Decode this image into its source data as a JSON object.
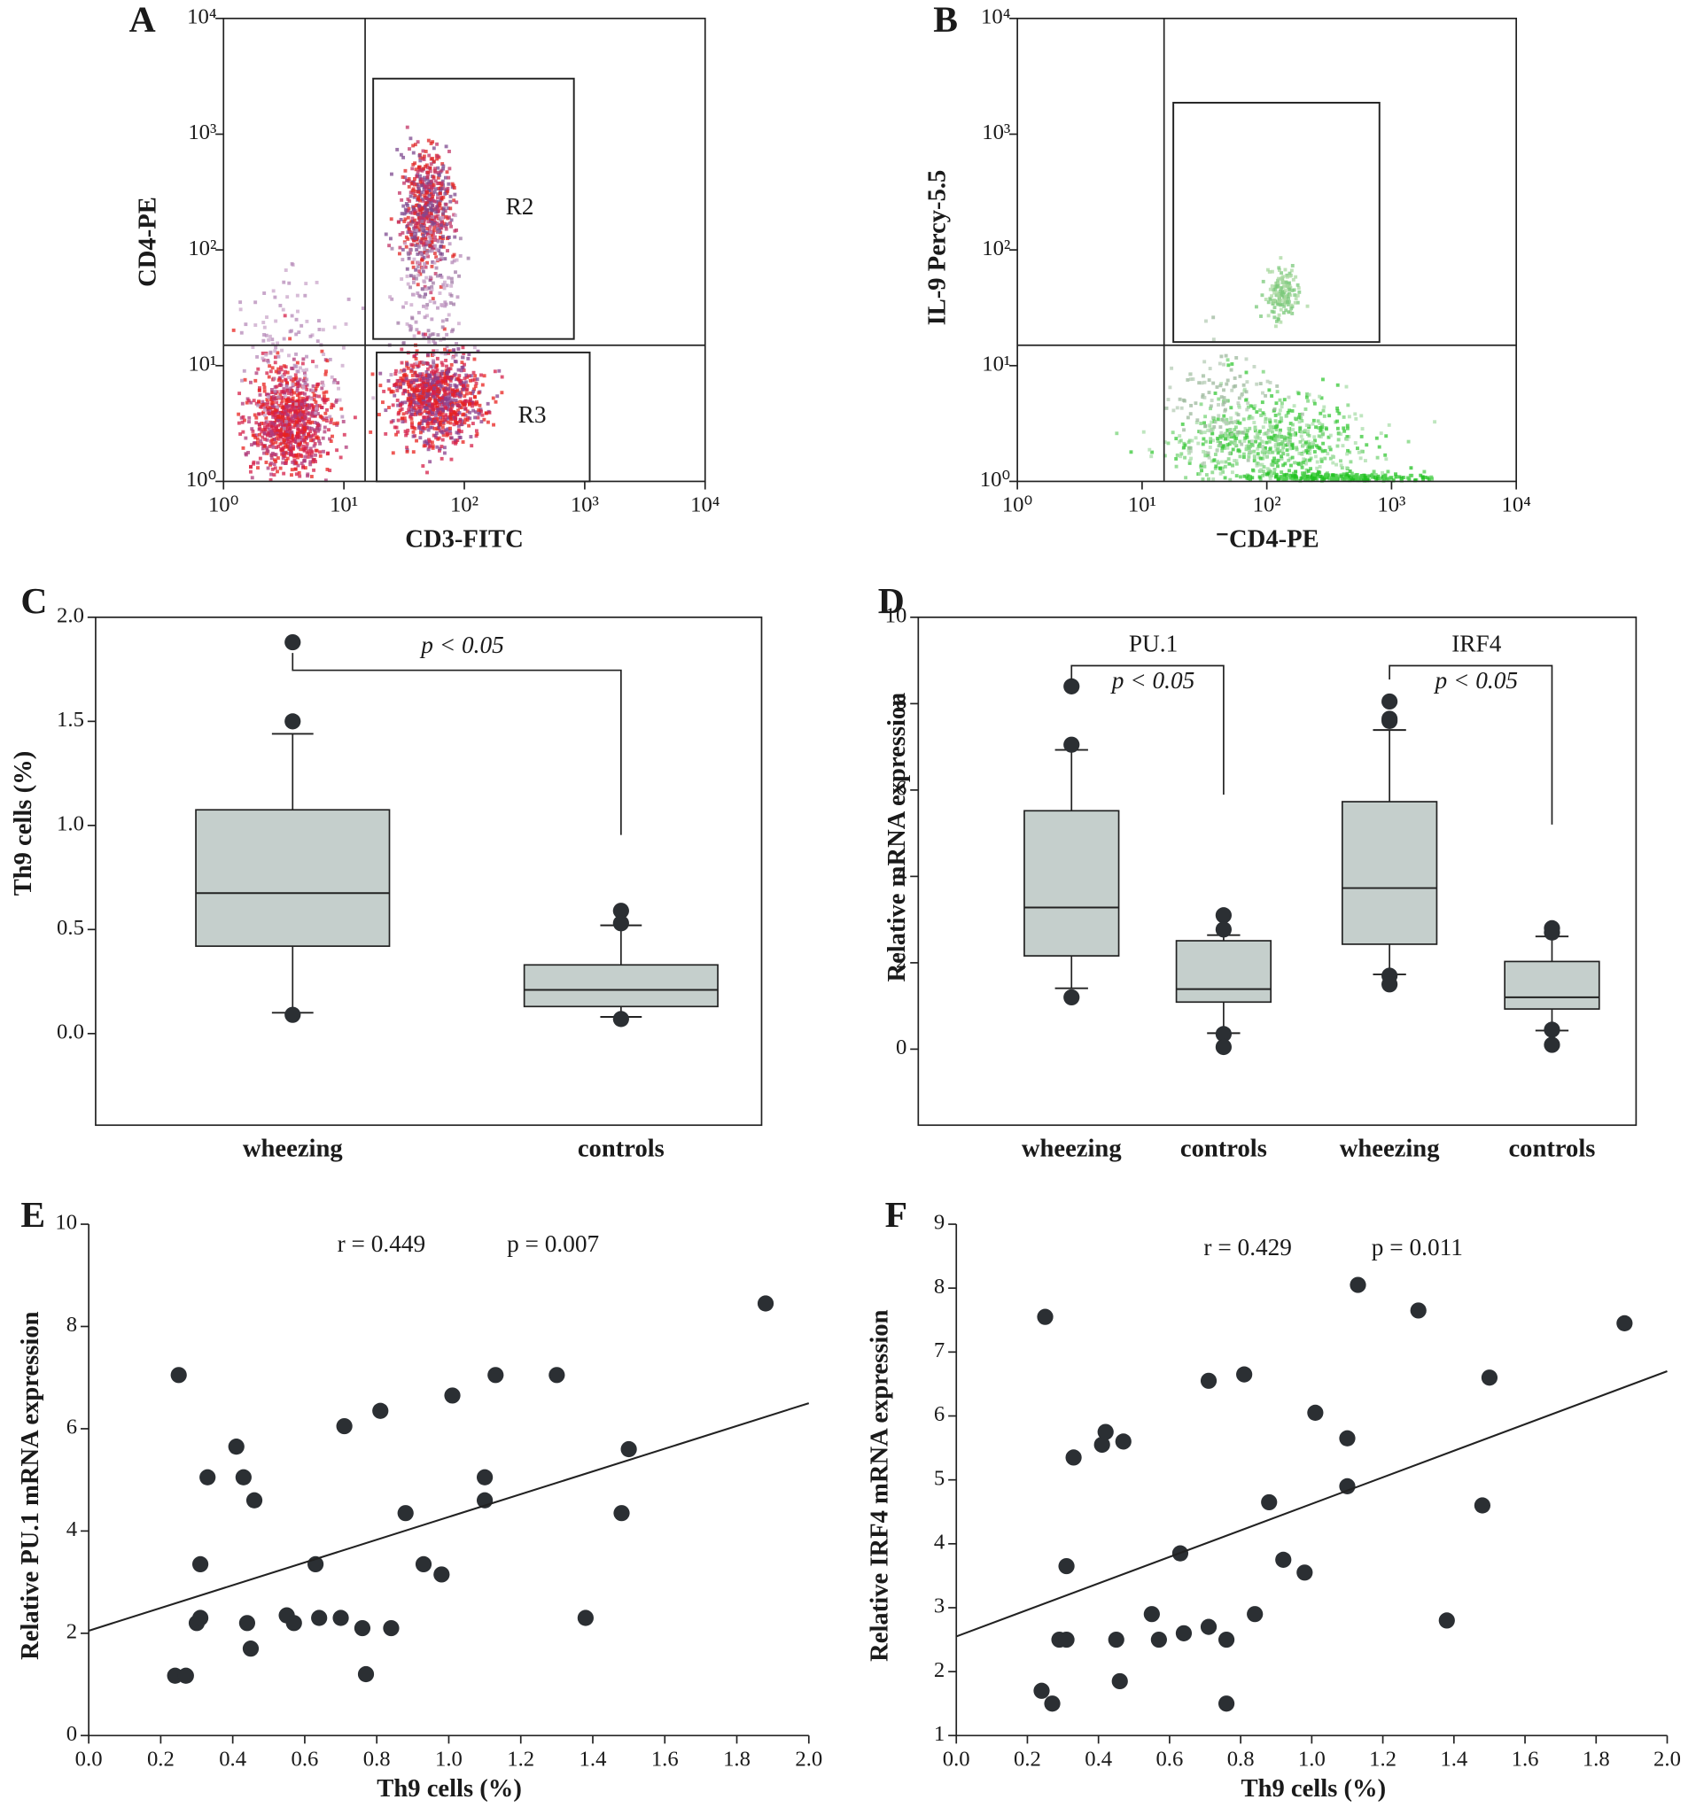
{
  "chart_data": [
    {
      "panel": "A",
      "type": "flow",
      "x_label": "CD3-FITC",
      "y_label": "CD4-PE",
      "log_scale": true,
      "xlim": [
        1,
        10000
      ],
      "ylim": [
        1,
        10000
      ],
      "xticks": [
        {
          "value": 1,
          "label": "10⁰"
        },
        {
          "value": 10,
          "label": "10¹"
        },
        {
          "value": 100,
          "label": "10²"
        },
        {
          "value": 1000,
          "label": "10³"
        },
        {
          "value": 10000,
          "label": "10⁴"
        }
      ],
      "yticks": [
        {
          "value": 1,
          "label": "10⁰"
        },
        {
          "value": 10,
          "label": "10¹"
        },
        {
          "value": 100,
          "label": "10²"
        },
        {
          "value": 1000,
          "label": "10³"
        },
        {
          "value": 10000,
          "label": "10⁴"
        }
      ],
      "quadrant": [
        15,
        15
      ],
      "gates": [
        {
          "label": "R2",
          "x": [
            17.5,
            813
          ],
          "y": [
            17,
            3020
          ]
        },
        {
          "label": "R3",
          "x": [
            18.7,
            1100
          ],
          "y": [
            1,
            13
          ]
        }
      ]
    },
    {
      "panel": "B",
      "type": "flow",
      "x_label": "⁻CD4-PE",
      "y_label": "IL-9 Percy-5.5",
      "log_scale": true,
      "xlim": [
        1,
        10000
      ],
      "ylim": [
        1,
        10000
      ],
      "xticks": [
        {
          "value": 1,
          "label": "10⁰"
        },
        {
          "value": 10,
          "label": "10¹"
        },
        {
          "value": 100,
          "label": "10²"
        },
        {
          "value": 1000,
          "label": "10³"
        },
        {
          "value": 10000,
          "label": "10⁴"
        }
      ],
      "yticks": [
        {
          "value": 1,
          "label": "10⁰"
        },
        {
          "value": 10,
          "label": "10¹"
        },
        {
          "value": 100,
          "label": "10²"
        },
        {
          "value": 1000,
          "label": "10³"
        },
        {
          "value": 10000,
          "label": "10⁴"
        }
      ],
      "quadrant": [
        15,
        15
      ],
      "gates": [
        {
          "x": [
            17.8,
            800
          ],
          "y": [
            16,
            1870
          ]
        }
      ]
    },
    {
      "panel": "C",
      "type": "box",
      "y_label": "Th9 cells (%)",
      "color": "#c5cfcc",
      "categories": [
        "wheezing",
        "controls"
      ],
      "ylim": [
        -0.44,
        2.0
      ],
      "yticks": [
        {
          "value": 0,
          "label": "0.0"
        },
        0.5,
        {
          "value": 1,
          "label": "1.0"
        },
        1.5,
        {
          "value": 2,
          "label": "2.0"
        }
      ],
      "boxes": [
        {
          "whisker_low": 0.1,
          "q1": 0.42,
          "median": 0.675,
          "q3": 1.075,
          "whisker_high": 1.44,
          "outliers": [
            1.88,
            1.5,
            0.09
          ]
        },
        {
          "whisker_low": 0.08,
          "q1": 0.13,
          "median": 0.21,
          "q3": 0.33,
          "whisker_high": 0.52,
          "outliers": [
            0.59,
            0.53,
            0.07
          ]
        }
      ],
      "comparisons": [
        {
          "text": "p < 0.05",
          "between": [
            0,
            1
          ]
        }
      ]
    },
    {
      "panel": "D",
      "type": "box",
      "y_label": "Relative mRNA expression",
      "color": "#c5cfcc",
      "categories": [
        "wheezing",
        "controls",
        "wheezing",
        "controls"
      ],
      "ylim": [
        -1.76,
        10
      ],
      "yticks": [
        0,
        2,
        4,
        6,
        8,
        10
      ],
      "boxes": [
        {
          "whisker_low": 1.41,
          "q1": 2.16,
          "median": 3.28,
          "q3": 5.52,
          "whisker_high": 6.93,
          "outliers": [
            8.4,
            7.05,
            1.2
          ]
        },
        {
          "whisker_low": 0.37,
          "q1": 1.09,
          "median": 1.39,
          "q3": 2.51,
          "whisker_high": 2.64,
          "outliers": [
            3.1,
            2.77,
            0.35,
            0.05
          ]
        },
        {
          "whisker_low": 1.73,
          "q1": 2.43,
          "median": 3.73,
          "q3": 5.73,
          "whisker_high": 7.39,
          "outliers": [
            8.05,
            7.65,
            7.6,
            1.7,
            1.5
          ]
        },
        {
          "whisker_low": 0.43,
          "q1": 0.93,
          "median": 1.2,
          "q3": 2.03,
          "whisker_high": 2.61,
          "outliers": [
            2.8,
            2.7,
            0.45,
            0.1
          ]
        }
      ],
      "comparisons": [
        {
          "label": "PU.1",
          "text": "p < 0.05",
          "between": [
            0,
            1
          ]
        },
        {
          "label": "IRF4",
          "text": "p < 0.05",
          "between": [
            2,
            3
          ]
        }
      ]
    },
    {
      "panel": "E",
      "type": "scatter",
      "x_label": "Th9 cells (%)",
      "y_label": "Relative PU.1 mRNA expression",
      "color": "#2b2f33",
      "xlim": [
        0,
        2
      ],
      "ylim": [
        0,
        10
      ],
      "xticks": [
        {
          "value": 0,
          "label": "0.0"
        },
        0.2,
        0.4,
        0.6,
        0.8,
        {
          "value": 1,
          "label": "1.0"
        },
        1.2,
        1.4,
        1.6,
        1.8,
        {
          "value": 2,
          "label": "2.0"
        }
      ],
      "yticks": [
        0,
        2,
        4,
        6,
        8,
        10
      ],
      "x": [
        0.24,
        0.25,
        0.27,
        0.3,
        0.31,
        0.31,
        0.33,
        0.41,
        0.43,
        0.44,
        0.45,
        0.46,
        0.55,
        0.57,
        0.63,
        0.64,
        0.7,
        0.71,
        0.76,
        0.77,
        0.81,
        0.84,
        0.88,
        0.93,
        0.98,
        1.01,
        1.1,
        1.1,
        1.13,
        1.3,
        1.38,
        1.48,
        1.5,
        1.88
      ],
      "values": [
        1.17,
        7.05,
        1.17,
        2.2,
        2.3,
        3.35,
        5.05,
        5.65,
        5.05,
        2.2,
        1.7,
        4.6,
        2.35,
        2.2,
        3.35,
        2.3,
        2.3,
        6.05,
        2.1,
        1.2,
        6.35,
        2.1,
        4.35,
        3.35,
        3.15,
        6.65,
        5.05,
        4.6,
        7.05,
        7.05,
        2.3,
        4.35,
        5.6,
        8.45
      ],
      "trendline": {
        "x": [
          0,
          2
        ],
        "y": [
          2.05,
          6.5
        ]
      },
      "annotations": [
        "r = 0.449",
        "p = 0.007"
      ]
    },
    {
      "panel": "F",
      "type": "scatter",
      "x_label": "Th9 cells (%)",
      "y_label": "Relative IRF4 mRNA expression",
      "color": "#2b2f33",
      "xlim": [
        0,
        2
      ],
      "ylim": [
        1,
        9
      ],
      "xticks": [
        {
          "value": 0,
          "label": "0.0"
        },
        0.2,
        0.4,
        0.6,
        0.8,
        {
          "value": 1,
          "label": "1.0"
        },
        1.2,
        1.4,
        1.6,
        1.8,
        {
          "value": 2,
          "label": "2.0"
        }
      ],
      "yticks": [
        1,
        2,
        3,
        4,
        5,
        6,
        7,
        8,
        9
      ],
      "x": [
        0.24,
        0.25,
        0.27,
        0.29,
        0.31,
        0.31,
        0.33,
        0.41,
        0.42,
        0.45,
        0.46,
        0.47,
        0.55,
        0.57,
        0.63,
        0.64,
        0.71,
        0.71,
        0.76,
        0.76,
        0.81,
        0.84,
        0.88,
        0.92,
        0.98,
        1.01,
        1.1,
        1.1,
        1.13,
        1.3,
        1.38,
        1.48,
        1.5,
        1.88
      ],
      "values": [
        1.7,
        7.55,
        1.5,
        2.5,
        2.5,
        3.65,
        5.35,
        5.55,
        5.75,
        2.5,
        1.85,
        5.6,
        2.9,
        2.5,
        3.85,
        2.6,
        2.7,
        6.55,
        2.5,
        1.5,
        6.65,
        2.9,
        4.65,
        3.75,
        3.55,
        6.05,
        5.65,
        4.9,
        8.05,
        7.65,
        2.8,
        4.6,
        6.6,
        7.45
      ],
      "trendline": {
        "x": [
          0,
          2
        ],
        "y": [
          2.55,
          6.7
        ]
      },
      "annotations": [
        "r = 0.429",
        "p = 0.011"
      ]
    }
  ]
}
